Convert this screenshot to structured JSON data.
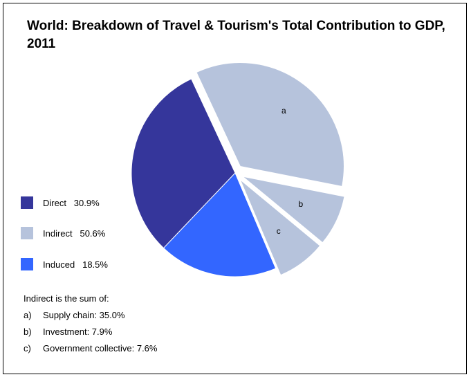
{
  "colors": {
    "direct": "#35369b",
    "indirect": "#b6c3dc",
    "induced": "#3366ff"
  },
  "chart_data": {
    "type": "pie",
    "title": "World: Breakdown of Travel & Tourism's Total Contribution to GDP, 2011",
    "slices": [
      {
        "name": "Supply chain",
        "label": "a",
        "value": 35.0,
        "group": "Indirect",
        "exploded": true
      },
      {
        "name": "Investment",
        "label": "b",
        "value": 7.9,
        "group": "Indirect",
        "exploded": true
      },
      {
        "name": "Government collective",
        "label": "c",
        "value": 7.6,
        "group": "Indirect",
        "exploded": true
      },
      {
        "name": "Induced",
        "label": "",
        "value": 18.5,
        "group": "Induced",
        "exploded": false
      },
      {
        "name": "Direct",
        "label": "",
        "value": 30.9,
        "group": "Direct",
        "exploded": false
      }
    ],
    "legend": [
      {
        "name": "Direct",
        "value": "30.9%",
        "text": "Direct   30.9%"
      },
      {
        "name": "Indirect",
        "value": "50.6%",
        "text": "Indirect   50.6%"
      },
      {
        "name": "Induced",
        "value": "18.5%",
        "text": "Induced   18.5%"
      }
    ],
    "legend_position": "left"
  },
  "note": {
    "heading": "Indirect is the sum of:",
    "items": [
      {
        "key": "a)",
        "text": "Supply chain: 35.0%"
      },
      {
        "key": "b)",
        "text": "Investment: 7.9%"
      },
      {
        "key": "c)",
        "text": "Government collective: 7.6%"
      }
    ]
  }
}
